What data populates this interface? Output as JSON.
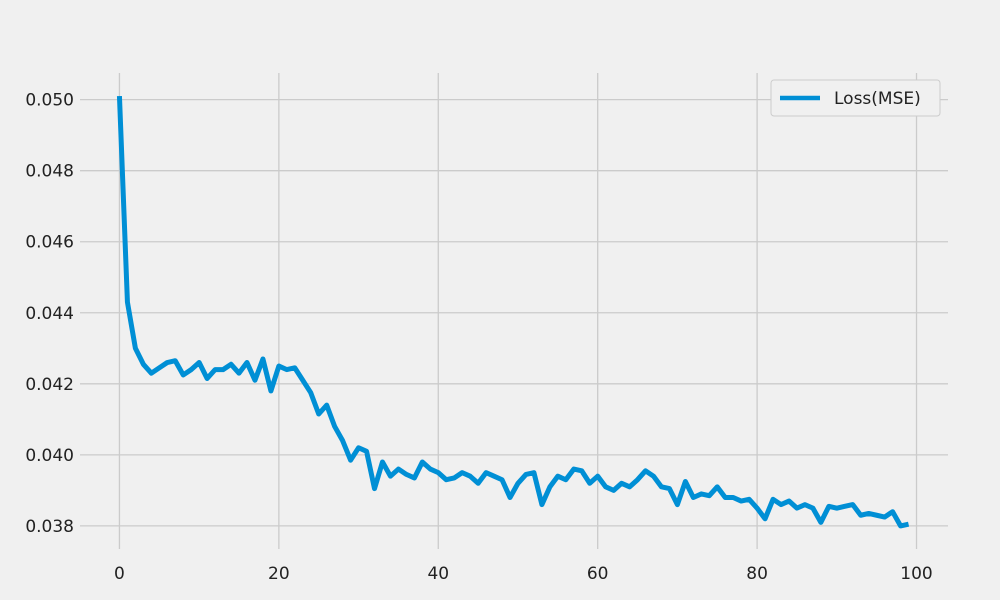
{
  "colors": {
    "background": "#f0f0f0",
    "grid": "#cbcbcb",
    "line": "#008fd5",
    "text": "#222222",
    "legend_border": "#cccccc"
  },
  "chart_data": {
    "type": "line",
    "title": "",
    "xlabel": "",
    "ylabel": "",
    "xlim": [
      -4.95,
      103.95
    ],
    "ylim": [
      0.03735,
      0.05075
    ],
    "xticks": [
      0,
      20,
      40,
      60,
      80,
      100
    ],
    "xtick_labels": [
      "0",
      "20",
      "40",
      "60",
      "80",
      "100"
    ],
    "yticks": [
      0.038,
      0.04,
      0.042,
      0.044,
      0.046,
      0.048,
      0.05
    ],
    "ytick_labels": [
      "0.038",
      "0.040",
      "0.042",
      "0.044",
      "0.046",
      "0.048",
      "0.050"
    ],
    "grid": true,
    "legend_position": "top-right",
    "series": [
      {
        "name": "Loss(MSE)",
        "color": "#008fd5",
        "x": [
          0,
          1,
          2,
          3,
          4,
          5,
          6,
          7,
          8,
          9,
          10,
          11,
          12,
          13,
          14,
          15,
          16,
          17,
          18,
          19,
          20,
          21,
          22,
          23,
          24,
          25,
          26,
          27,
          28,
          29,
          30,
          31,
          32,
          33,
          34,
          35,
          36,
          37,
          38,
          39,
          40,
          41,
          42,
          43,
          44,
          45,
          46,
          47,
          48,
          49,
          50,
          51,
          52,
          53,
          54,
          55,
          56,
          57,
          58,
          59,
          60,
          61,
          62,
          63,
          64,
          65,
          66,
          67,
          68,
          69,
          70,
          71,
          72,
          73,
          74,
          75,
          76,
          77,
          78,
          79,
          80,
          81,
          82,
          83,
          84,
          85,
          86,
          87,
          88,
          89,
          90,
          91,
          92,
          93,
          94,
          95,
          96,
          97,
          98,
          99
        ],
        "values": [
          0.0501,
          0.0443,
          0.043,
          0.04255,
          0.0423,
          0.04245,
          0.0426,
          0.04265,
          0.04225,
          0.0424,
          0.0426,
          0.04215,
          0.0424,
          0.0424,
          0.04255,
          0.0423,
          0.0426,
          0.0421,
          0.0427,
          0.0418,
          0.0425,
          0.0424,
          0.04245,
          0.0421,
          0.04175,
          0.04115,
          0.0414,
          0.0408,
          0.0404,
          0.03985,
          0.0402,
          0.0401,
          0.03905,
          0.0398,
          0.0394,
          0.0396,
          0.03945,
          0.03935,
          0.0398,
          0.0396,
          0.0395,
          0.0393,
          0.03935,
          0.0395,
          0.0394,
          0.0392,
          0.0395,
          0.0394,
          0.0393,
          0.0388,
          0.0392,
          0.03945,
          0.0395,
          0.0386,
          0.0391,
          0.0394,
          0.0393,
          0.0396,
          0.03955,
          0.0392,
          0.0394,
          0.0391,
          0.039,
          0.0392,
          0.0391,
          0.0393,
          0.03955,
          0.0394,
          0.0391,
          0.03905,
          0.0386,
          0.03925,
          0.0388,
          0.0389,
          0.03885,
          0.0391,
          0.0388,
          0.0388,
          0.0387,
          0.03875,
          0.0385,
          0.0382,
          0.03875,
          0.0386,
          0.0387,
          0.0385,
          0.0386,
          0.0385,
          0.0381,
          0.03855,
          0.0385,
          0.03855,
          0.0386,
          0.0383,
          0.03835,
          0.0383,
          0.03825,
          0.0384,
          0.038,
          0.03805
        ]
      }
    ]
  }
}
